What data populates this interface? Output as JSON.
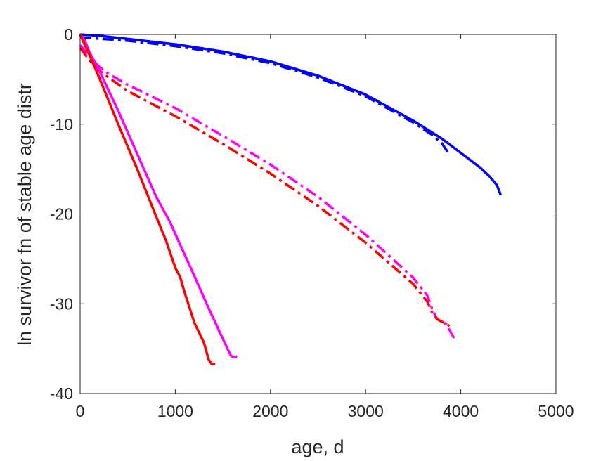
{
  "chart_data": {
    "type": "line",
    "title": "",
    "xlabel": "age, d",
    "ylabel": "ln survivor fn of stable age distr",
    "xlim": [
      0,
      5000
    ],
    "ylim": [
      -40,
      0
    ],
    "xticks": [
      0,
      1000,
      2000,
      3000,
      4000,
      5000
    ],
    "yticks": [
      0,
      -10,
      -20,
      -30,
      -40
    ],
    "xtick_labels": [
      "0",
      "1000",
      "2000",
      "3000",
      "4000",
      "5000"
    ],
    "ytick_labels": [
      "0",
      "-10",
      "-20",
      "-30",
      "-40"
    ],
    "grid": false,
    "legend": "none",
    "series": [
      {
        "color": "#0000ff",
        "style": "solid",
        "x": [
          0,
          200,
          500,
          1000,
          1500,
          2000,
          2500,
          3000,
          3500,
          3800,
          4000,
          4200,
          4300,
          4380,
          4420
        ],
        "y": [
          0,
          -0.15,
          -0.5,
          -1.1,
          -1.9,
          -3.0,
          -4.6,
          -6.7,
          -9.6,
          -11.6,
          -13.2,
          -14.8,
          -15.8,
          -16.8,
          -17.9
        ]
      },
      {
        "color": "#0000ff",
        "style": "dashdot",
        "x": [
          0,
          100,
          500,
          1000,
          1500,
          2000,
          2500,
          3000,
          3500,
          3700,
          3800,
          3850,
          3880
        ],
        "y": [
          -0.3,
          -0.4,
          -0.7,
          -1.3,
          -2.1,
          -3.2,
          -4.8,
          -6.9,
          -9.8,
          -11.2,
          -12.1,
          -12.9,
          -13.5
        ]
      },
      {
        "color": "#ff00ff",
        "style": "dashdot",
        "x": [
          0,
          50,
          100,
          200,
          300,
          500,
          1000,
          1500,
          2000,
          2500,
          3000,
          3500,
          3650,
          3700,
          3750,
          3850,
          3900,
          3940
        ],
        "y": [
          -1.2,
          -1.8,
          -2.5,
          -3.6,
          -4.4,
          -5.6,
          -8.2,
          -11.3,
          -14.5,
          -18.1,
          -22.3,
          -27.1,
          -29.1,
          -30.6,
          -31.7,
          -32.3,
          -33.3,
          -34.0
        ]
      },
      {
        "color": "#ff0000",
        "style": "dashdot",
        "x": [
          0,
          50,
          100,
          200,
          300,
          500,
          1000,
          1500,
          2000,
          2500,
          3000,
          3500,
          3650,
          3700,
          3750,
          3800,
          3850,
          3880
        ],
        "y": [
          -1.5,
          -2.2,
          -2.9,
          -4.0,
          -4.8,
          -6.3,
          -9.1,
          -12.2,
          -15.5,
          -19.1,
          -23.2,
          -27.8,
          -29.8,
          -31.0,
          -31.7,
          -32.0,
          -32.2,
          -32.5
        ]
      },
      {
        "color": "#ff00ff",
        "style": "solid",
        "x": [
          0,
          50,
          100,
          200,
          400,
          600,
          800,
          950,
          1050,
          1200,
          1350,
          1500,
          1580,
          1600,
          1650
        ],
        "y": [
          0,
          -0.7,
          -2.0,
          -4.0,
          -8.5,
          -13.3,
          -18.1,
          -21.0,
          -23.4,
          -26.9,
          -30.5,
          -33.9,
          -35.7,
          -35.9,
          -35.9
        ]
      },
      {
        "color": "#ff0000",
        "style": "solid",
        "x": [
          0,
          50,
          100,
          200,
          400,
          600,
          800,
          900,
          1000,
          1050,
          1100,
          1200,
          1300,
          1350,
          1380,
          1420
        ],
        "y": [
          0,
          -1.2,
          -2.3,
          -4.8,
          -10.0,
          -15.0,
          -20.3,
          -22.9,
          -26.0,
          -27.0,
          -28.8,
          -32.1,
          -34.3,
          -36.2,
          -36.7,
          -36.7
        ]
      }
    ]
  }
}
